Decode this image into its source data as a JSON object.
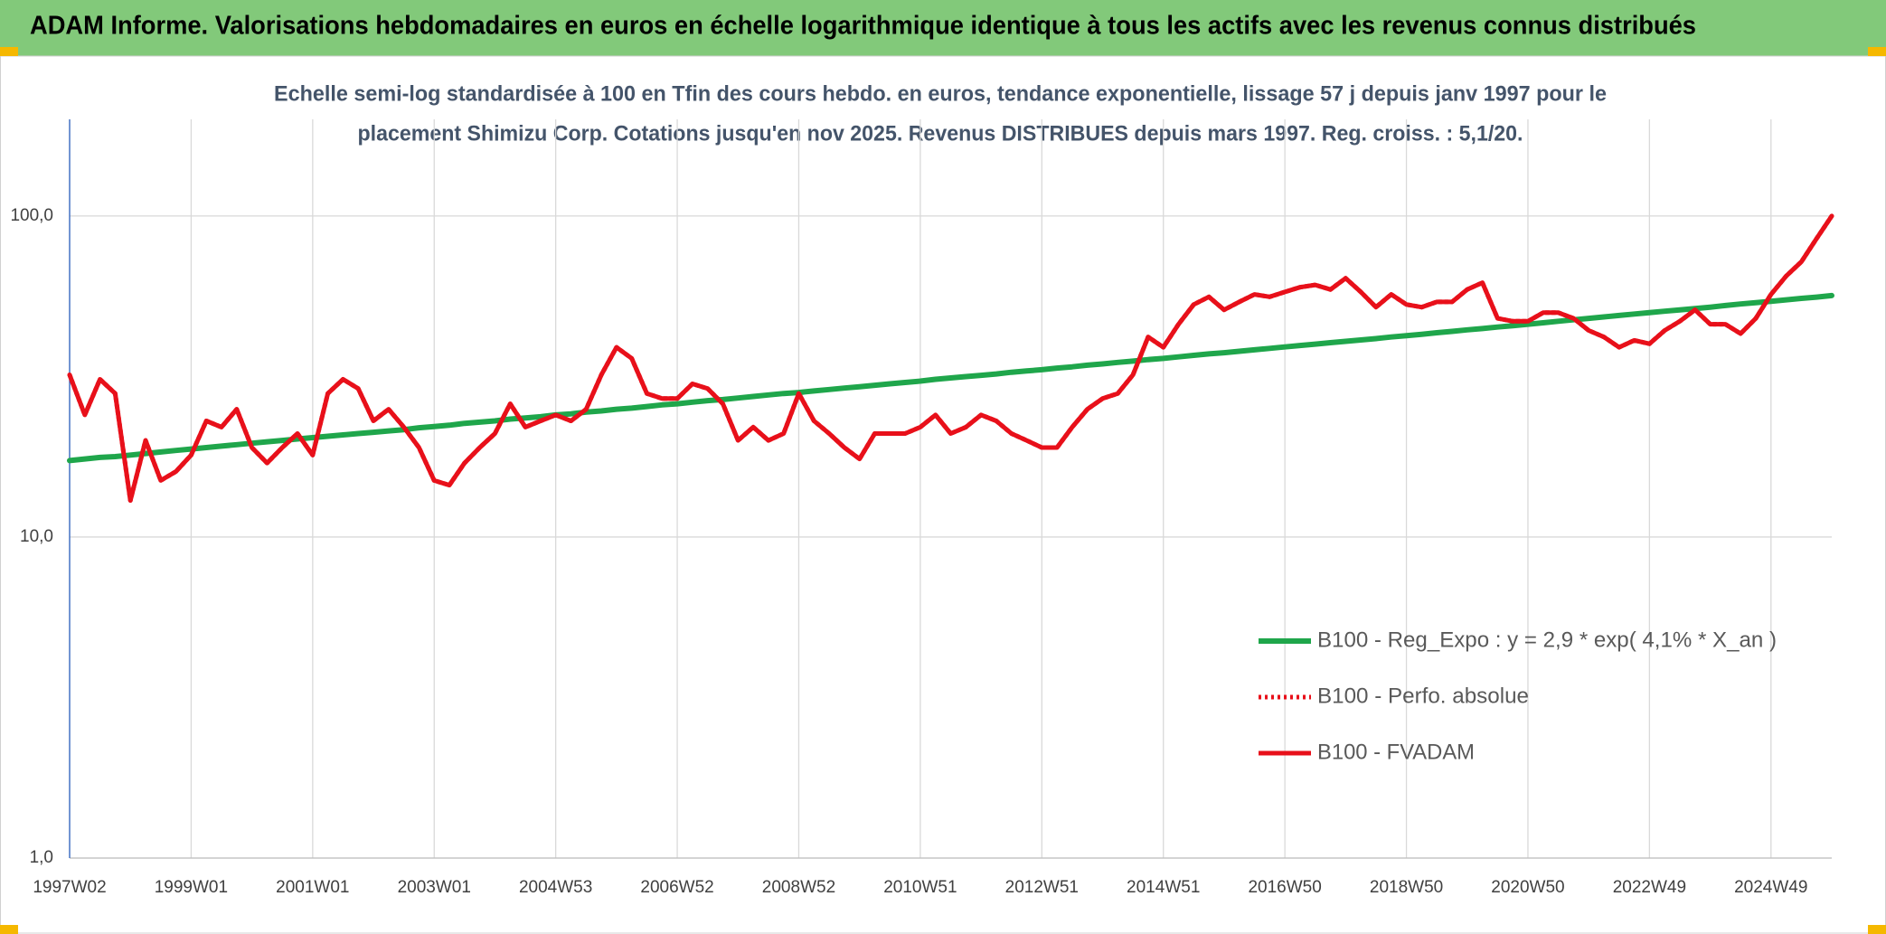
{
  "chart_data": {
    "type": "line",
    "title": "ADAM Informe. Valorisations hebdomadaires en euros en échelle logarithmique identique à tous les actifs avec les revenus connus distribués",
    "subtitle": [
      "Echelle semi-log standardisée à 100 en Tfin des cours hebdo. en euros, tendance exponentielle, lissage 57 j depuis janv 1997 pour le",
      "placement Shimizu Corp. Cotations jusqu'en nov 2025. Revenus DISTRIBUES depuis mars 1997. Reg. croiss. : 5,1/20."
    ],
    "categories": [
      "1997W02",
      null,
      null,
      null,
      null,
      null,
      null,
      null,
      "1999W01",
      null,
      null,
      null,
      null,
      null,
      null,
      null,
      "2001W01",
      null,
      null,
      null,
      null,
      null,
      null,
      null,
      "2003W01",
      null,
      null,
      null,
      null,
      null,
      null,
      null,
      "2004W53",
      null,
      null,
      null,
      null,
      null,
      null,
      null,
      "2006W52",
      null,
      null,
      null,
      null,
      null,
      null,
      null,
      "2008W52",
      null,
      null,
      null,
      null,
      null,
      null,
      null,
      "2010W51",
      null,
      null,
      null,
      null,
      null,
      null,
      null,
      "2012W51",
      null,
      null,
      null,
      null,
      null,
      null,
      null,
      "2014W51",
      null,
      null,
      null,
      null,
      null,
      null,
      null,
      "2016W50",
      null,
      null,
      null,
      null,
      null,
      null,
      null,
      "2018W50",
      null,
      null,
      null,
      null,
      null,
      null,
      null,
      "2020W50",
      null,
      null,
      null,
      null,
      null,
      null,
      null,
      "2022W49",
      null,
      null,
      null,
      null,
      null,
      null,
      null,
      "2024W49",
      null,
      null,
      null,
      null
    ],
    "series": [
      {
        "name": "B100 - Reg_Expo : y = 2,9 * exp( 4,1% *  X_an )",
        "color": "#1fa64b",
        "line_style": "solid",
        "values": [
          17.3,
          17.5,
          17.7,
          17.8,
          18.0,
          18.2,
          18.4,
          18.6,
          18.8,
          19.0,
          19.2,
          19.4,
          19.6,
          19.8,
          20.0,
          20.2,
          20.4,
          20.6,
          20.8,
          21.0,
          21.2,
          21.4,
          21.6,
          21.9,
          22.1,
          22.3,
          22.6,
          22.8,
          23.0,
          23.3,
          23.5,
          23.7,
          24.0,
          24.2,
          24.5,
          24.7,
          25.0,
          25.2,
          25.5,
          25.8,
          26.0,
          26.3,
          26.6,
          26.8,
          27.1,
          27.4,
          27.7,
          28.0,
          28.2,
          28.5,
          28.8,
          29.1,
          29.4,
          29.7,
          30.0,
          30.3,
          30.6,
          31.0,
          31.3,
          31.6,
          31.9,
          32.2,
          32.6,
          32.9,
          33.2,
          33.6,
          33.9,
          34.3,
          34.6,
          35.0,
          35.3,
          35.7,
          36.0,
          36.4,
          36.8,
          37.2,
          37.5,
          37.9,
          38.3,
          38.7,
          39.1,
          39.5,
          39.9,
          40.3,
          40.7,
          41.1,
          41.5,
          42.0,
          42.4,
          42.8,
          43.3,
          43.7,
          44.2,
          44.6,
          45.1,
          45.5,
          46.0,
          46.5,
          47.0,
          47.5,
          48.0,
          48.5,
          49.0,
          49.5,
          50.0,
          50.5,
          51.0,
          51.5,
          52.0,
          52.6,
          53.2,
          53.7,
          54.2,
          54.8,
          55.4,
          55.9,
          56.5
        ]
      },
      {
        "name": "B100 - Perfo. absolue",
        "color": "#e8101a",
        "line_style": "dotted",
        "values": [
          32,
          24,
          31,
          28,
          13,
          20,
          15,
          16,
          18,
          23,
          22,
          25,
          19,
          17,
          19,
          21,
          18,
          28,
          31,
          29,
          23,
          25,
          22,
          19,
          15,
          14.5,
          17,
          19,
          21,
          26,
          22,
          23,
          24,
          23,
          25,
          32,
          39,
          36,
          28,
          27,
          27,
          30,
          29,
          26,
          20,
          22,
          20,
          21,
          28,
          23,
          21,
          19,
          17.5,
          21,
          21,
          21,
          22,
          24,
          21,
          22,
          24,
          23,
          21,
          20,
          19,
          19,
          22,
          25,
          27,
          28,
          32,
          42,
          39,
          46,
          53,
          56,
          51,
          54,
          57,
          56,
          58,
          60,
          61,
          59,
          64,
          58,
          52,
          57,
          53,
          52,
          54,
          54,
          59,
          62,
          48,
          47,
          47,
          50,
          50,
          48,
          44,
          42,
          39,
          41,
          40,
          44,
          47,
          51,
          46,
          46,
          43,
          48,
          57,
          65,
          72,
          85,
          100
        ]
      },
      {
        "name": "B100 - FVADAM",
        "color": "#e8101a",
        "line_style": "solid",
        "values": [
          32,
          24,
          31,
          28,
          13,
          20,
          15,
          16,
          18,
          23,
          22,
          25,
          19,
          17,
          19,
          21,
          18,
          28,
          31,
          29,
          23,
          25,
          22,
          19,
          15,
          14.5,
          17,
          19,
          21,
          26,
          22,
          23,
          24,
          23,
          25,
          32,
          39,
          36,
          28,
          27,
          27,
          30,
          29,
          26,
          20,
          22,
          20,
          21,
          28,
          23,
          21,
          19,
          17.5,
          21,
          21,
          21,
          22,
          24,
          21,
          22,
          24,
          23,
          21,
          20,
          19,
          19,
          22,
          25,
          27,
          28,
          32,
          42,
          39,
          46,
          53,
          56,
          51,
          54,
          57,
          56,
          58,
          60,
          61,
          59,
          64,
          58,
          52,
          57,
          53,
          52,
          54,
          54,
          59,
          62,
          48,
          47,
          47,
          50,
          50,
          48,
          44,
          42,
          39,
          41,
          40,
          44,
          47,
          51,
          46,
          46,
          43,
          48,
          57,
          65,
          72,
          85,
          100
        ]
      }
    ],
    "ylim": [
      1,
      200
    ],
    "yticks": [
      {
        "value": 1,
        "label": "1,0"
      },
      {
        "value": 10,
        "label": "10,0"
      },
      {
        "value": 100,
        "label": "100,0"
      }
    ],
    "log_scale": true,
    "grid": true,
    "legend_position": "right"
  }
}
